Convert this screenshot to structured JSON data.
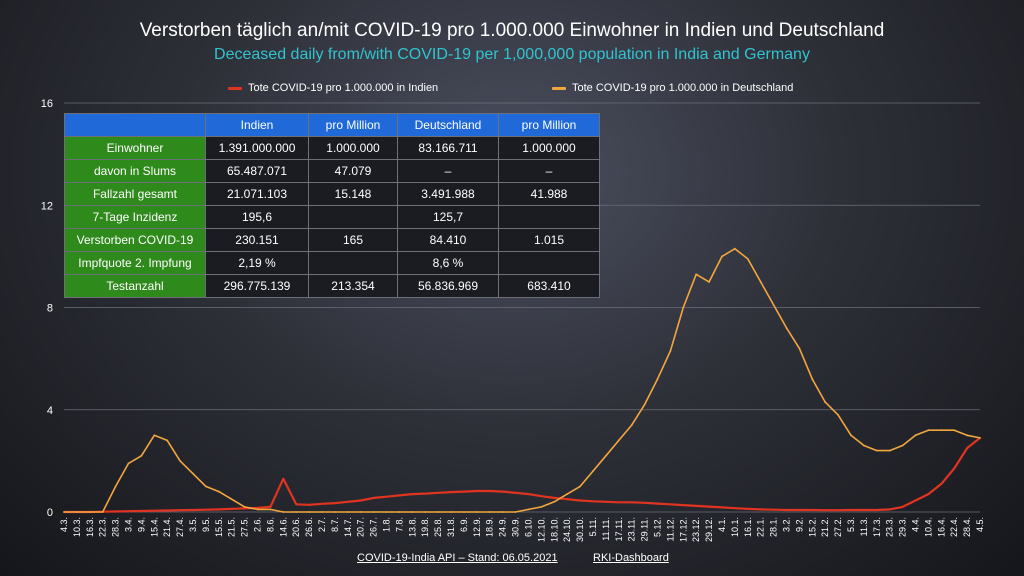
{
  "title": "Verstorben täglich an/mit COVID-19 pro 1.000.000 Einwohner in Indien und Deutschland",
  "subtitle": "Deceased daily from/with COVID-19 per 1,000,000 population in India and Germany",
  "footer": {
    "source_left": "COVID-19-India API – Stand: 06.05.2021",
    "source_right": "RKI-Dashboard"
  },
  "colors": {
    "india": "#e03421",
    "germany": "#f2a73e",
    "header": "#1f69d8",
    "rowhead": "#2f8a1c"
  },
  "table": {
    "headers": [
      "Indien",
      "pro Million",
      "Deutschland",
      "pro Million"
    ],
    "rows": [
      {
        "label": "Einwohner",
        "cells": [
          "1.391.000.000",
          "1.000.000",
          "83.166.711",
          "1.000.000"
        ]
      },
      {
        "label": "davon in Slums",
        "cells": [
          "65.487.071",
          "47.079",
          "–",
          "–"
        ]
      },
      {
        "label": "Fallzahl gesamt",
        "cells": [
          "21.071.103",
          "15.148",
          "3.491.988",
          "41.988"
        ]
      },
      {
        "label": "7-Tage Inzidenz",
        "cells": [
          "195,6",
          "",
          "125,7",
          ""
        ]
      },
      {
        "label": "Verstorben COVID-19",
        "cells": [
          "230.151",
          "165",
          "84.410",
          "1.015"
        ]
      },
      {
        "label": "Impfquote 2. Impfung",
        "cells": [
          "2,19 %",
          "",
          "8,6 %",
          ""
        ]
      },
      {
        "label": "Testanzahl",
        "cells": [
          "296.775.139",
          "213.354",
          "56.836.969",
          "683.410"
        ]
      }
    ]
  },
  "chart_data": {
    "type": "line",
    "xlabel": "",
    "ylabel": "",
    "ylim": [
      0,
      16
    ],
    "yticks": [
      0,
      4,
      8,
      12,
      16
    ],
    "grid": "horizontal",
    "legend_placement": "top",
    "categories": [
      "4.3.",
      "10.3.",
      "16.3.",
      "22.3.",
      "28.3.",
      "3.4.",
      "9.4.",
      "15.4.",
      "21.4.",
      "27.4.",
      "3.5.",
      "9.5.",
      "15.5.",
      "21.5.",
      "27.5.",
      "2.6.",
      "8.6.",
      "14.6.",
      "20.6.",
      "26.6.",
      "2.7.",
      "8.7.",
      "14.7.",
      "20.7.",
      "26.7.",
      "1.8.",
      "7.8.",
      "13.8.",
      "19.8.",
      "25.8.",
      "31.8.",
      "6.9.",
      "12.9.",
      "18.9.",
      "24.9.",
      "30.9.",
      "6.10.",
      "12.10.",
      "18.10.",
      "24.10.",
      "30.10.",
      "5.11.",
      "11.11.",
      "17.11.",
      "23.11.",
      "29.11.",
      "5.12.",
      "11.12.",
      "17.12.",
      "23.12.",
      "29.12.",
      "4.1.",
      "10.1.",
      "16.1.",
      "22.1.",
      "28.1.",
      "3.2.",
      "9.2.",
      "15.2.",
      "21.2.",
      "27.2.",
      "5.3.",
      "11.3.",
      "17.3.",
      "23.3.",
      "29.3.",
      "4.4.",
      "10.4.",
      "16.4.",
      "22.4.",
      "28.4.",
      "4.5."
    ],
    "series": [
      {
        "name": "Tote COVID-19 pro 1.000.000 in Indien",
        "color": "#e03421",
        "values": [
          0.0,
          0.0,
          0.0,
          0.01,
          0.02,
          0.03,
          0.04,
          0.05,
          0.06,
          0.07,
          0.08,
          0.09,
          0.1,
          0.12,
          0.14,
          0.16,
          0.2,
          1.3,
          0.3,
          0.28,
          0.32,
          0.35,
          0.4,
          0.45,
          0.55,
          0.6,
          0.65,
          0.7,
          0.72,
          0.75,
          0.78,
          0.8,
          0.82,
          0.82,
          0.8,
          0.75,
          0.7,
          0.62,
          0.55,
          0.5,
          0.45,
          0.42,
          0.4,
          0.38,
          0.38,
          0.36,
          0.33,
          0.3,
          0.27,
          0.24,
          0.21,
          0.18,
          0.15,
          0.12,
          0.1,
          0.09,
          0.08,
          0.08,
          0.08,
          0.07,
          0.07,
          0.08,
          0.08,
          0.08,
          0.1,
          0.2,
          0.45,
          0.7,
          1.1,
          1.7,
          2.5,
          2.9
        ]
      },
      {
        "name": "Tote COVID-19 pro 1.000.000 in Deutschland",
        "color": "#f2a73e",
        "values": [
          0.0,
          0.0,
          0.0,
          0.0,
          1.0,
          1.9,
          2.2,
          3.0,
          2.8,
          2.0,
          1.5,
          1.0,
          0.8,
          0.5,
          0.2,
          0.1,
          0.1,
          0.0,
          0.0,
          0.0,
          0.0,
          0.0,
          0.0,
          0.0,
          0.0,
          0.0,
          0.0,
          0.0,
          0.0,
          0.0,
          0.0,
          0.0,
          0.0,
          0.0,
          0.0,
          0.0,
          0.1,
          0.2,
          0.4,
          0.7,
          1.0,
          1.6,
          2.2,
          2.8,
          3.4,
          4.2,
          5.2,
          6.3,
          8.0,
          9.3,
          9.0,
          10.0,
          10.3,
          9.9,
          9.0,
          8.1,
          7.2,
          6.4,
          5.2,
          4.3,
          3.8,
          3.0,
          2.6,
          2.4,
          2.4,
          2.6,
          3.0,
          3.2,
          3.2,
          3.2,
          3.0,
          2.9
        ]
      }
    ],
    "annotations": []
  }
}
